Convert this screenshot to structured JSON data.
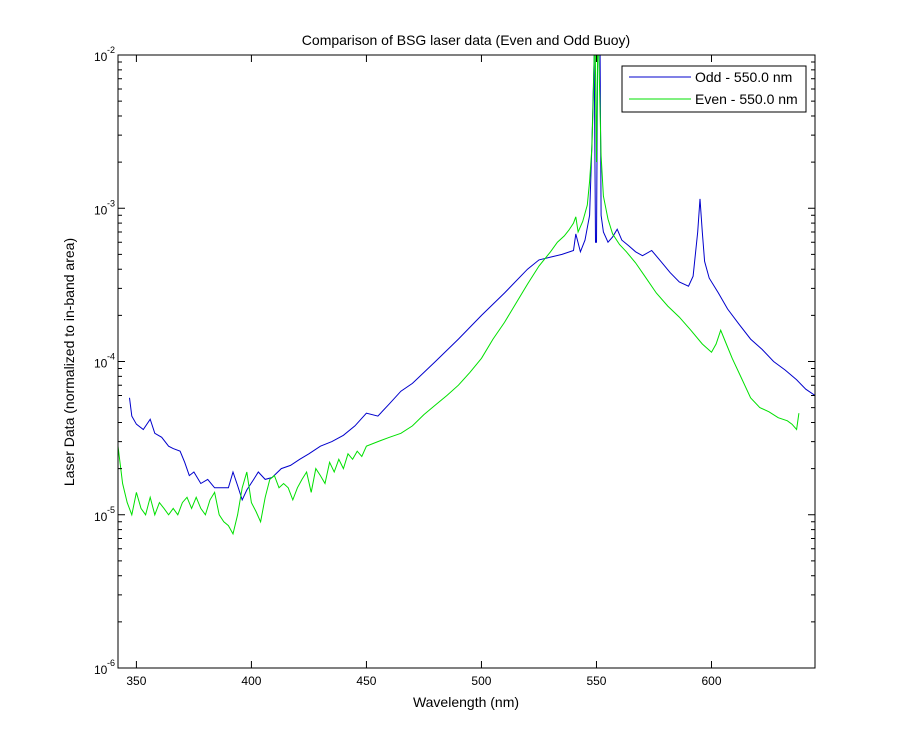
{
  "chart_data": {
    "type": "line",
    "title": "Comparison of BSG laser data (Even and Odd Buoy)",
    "xlabel": "Wavelength (nm)",
    "ylabel": "Laser Data (normalized to in-band area)",
    "xlim": [
      342,
      645
    ],
    "ylim": [
      1e-06,
      0.01
    ],
    "yscale": "log",
    "grid": false,
    "legend_position": "top-right",
    "x_ticks": [
      350,
      400,
      450,
      500,
      550,
      600
    ],
    "x_tick_labels": [
      "350",
      "400",
      "450",
      "500",
      "550",
      "600"
    ],
    "y_ticks": [
      {
        "value": 1e-06,
        "base": "10",
        "exp": "-6"
      },
      {
        "value": 1e-05,
        "base": "10",
        "exp": "-5"
      },
      {
        "value": 0.0001,
        "base": "10",
        "exp": "-4"
      },
      {
        "value": 0.001,
        "base": "10",
        "exp": "-3"
      },
      {
        "value": 0.01,
        "base": "10",
        "exp": "-2"
      }
    ],
    "series": [
      {
        "name": "Odd - 550.0 nm",
        "color": "#0000cc",
        "x": [
          347,
          348,
          350,
          353,
          356,
          358,
          361,
          364,
          366,
          369,
          371,
          373,
          375,
          378,
          381,
          384,
          387,
          390,
          392,
          394,
          396,
          398,
          401,
          403,
          406,
          409,
          413,
          417,
          421,
          425,
          430,
          435,
          440,
          445,
          450,
          455,
          460,
          465,
          470,
          480,
          490,
          500,
          510,
          520,
          525,
          530,
          535,
          540,
          541,
          543,
          545,
          547,
          548,
          549,
          549.6,
          550,
          550.5,
          551,
          551.6,
          552,
          553,
          555,
          557,
          559,
          561,
          564,
          567,
          570,
          574,
          578,
          582,
          586,
          590,
          592,
          594,
          595,
          596,
          597,
          599,
          603,
          607,
          612,
          617,
          622,
          627,
          632,
          637,
          641,
          645
        ],
        "y": [
          5.8e-05,
          4.4e-05,
          3.9e-05,
          3.6e-05,
          4.2e-05,
          3.4e-05,
          3.2e-05,
          2.8e-05,
          2.7e-05,
          2.6e-05,
          2.2e-05,
          1.8e-05,
          1.9e-05,
          1.6e-05,
          1.7e-05,
          1.5e-05,
          1.5e-05,
          1.5e-05,
          1.9e-05,
          1.55e-05,
          1.25e-05,
          1.45e-05,
          1.7e-05,
          1.9e-05,
          1.7e-05,
          1.75e-05,
          2e-05,
          2.1e-05,
          2.3e-05,
          2.5e-05,
          2.8e-05,
          3e-05,
          3.3e-05,
          3.8e-05,
          4.6e-05,
          4.4e-05,
          5.3e-05,
          6.4e-05,
          7.2e-05,
          0.0001,
          0.00014,
          0.0002,
          0.00028,
          0.0004,
          0.00046,
          0.00048,
          0.0005,
          0.00053,
          0.00068,
          0.00052,
          0.00062,
          0.0009,
          0.0026,
          0.01,
          0.0006,
          0.0006,
          0.01,
          0.01,
          0.01,
          0.0009,
          0.0007,
          0.0006,
          0.00065,
          0.00073,
          0.00062,
          0.00057,
          0.00052,
          0.00049,
          0.00053,
          0.00045,
          0.00038,
          0.00033,
          0.00031,
          0.00036,
          0.0007,
          0.00115,
          0.0007,
          0.00045,
          0.00035,
          0.00028,
          0.00022,
          0.000175,
          0.00014,
          0.00012,
          0.0001,
          8.8e-05,
          7.6e-05,
          6.6e-05,
          6e-05
        ]
      },
      {
        "name": "Even - 550.0 nm",
        "color": "#00e000",
        "x": [
          342,
          344,
          346,
          348,
          350,
          352,
          354,
          356,
          358,
          360,
          362,
          364,
          366,
          368,
          370,
          372,
          374,
          376,
          378,
          380,
          382,
          384,
          386,
          388,
          390,
          392,
          394,
          396,
          398,
          400,
          402,
          404,
          406,
          408,
          410,
          412,
          414,
          416,
          418,
          420,
          422,
          424,
          426,
          428,
          430,
          432,
          434,
          436,
          438,
          440,
          442,
          444,
          446,
          448,
          450,
          455,
          460,
          465,
          470,
          475,
          480,
          485,
          490,
          495,
          500,
          505,
          510,
          515,
          520,
          525,
          530,
          533,
          536,
          538,
          540,
          541,
          542,
          544,
          546,
          547,
          548,
          548.6,
          549,
          549.5,
          550,
          550.5,
          551,
          552,
          553,
          555,
          557,
          560,
          563,
          567,
          571,
          576,
          581,
          586,
          591,
          596,
          600,
          602,
          604,
          606,
          609,
          613,
          617,
          621,
          625,
          629,
          633,
          635,
          637,
          638
        ],
        "y": [
          2.8e-05,
          1.6e-05,
          1.2e-05,
          1e-05,
          1.4e-05,
          1.1e-05,
          1e-05,
          1.3e-05,
          1e-05,
          1.2e-05,
          1.1e-05,
          1e-05,
          1.1e-05,
          1e-05,
          1.2e-05,
          1.3e-05,
          1.1e-05,
          1.3e-05,
          1.1e-05,
          1e-05,
          1.25e-05,
          1.4e-05,
          1e-05,
          9e-06,
          8.5e-06,
          7.5e-06,
          1e-05,
          1.5e-05,
          1.9e-05,
          1.2e-05,
          1.05e-05,
          9e-06,
          1.3e-05,
          1.7e-05,
          1.8e-05,
          1.5e-05,
          1.6e-05,
          1.5e-05,
          1.25e-05,
          1.5e-05,
          1.7e-05,
          1.9e-05,
          1.4e-05,
          2e-05,
          1.8e-05,
          1.6e-05,
          2.2e-05,
          1.9e-05,
          2.3e-05,
          2e-05,
          2.5e-05,
          2.3e-05,
          2.6e-05,
          2.4e-05,
          2.8e-05,
          3e-05,
          3.2e-05,
          3.4e-05,
          3.8e-05,
          4.5e-05,
          5.2e-05,
          6e-05,
          7e-05,
          8.5e-05,
          0.000105,
          0.00014,
          0.00018,
          0.00024,
          0.00032,
          0.00042,
          0.00052,
          0.0006,
          0.00066,
          0.00072,
          0.0008,
          0.00088,
          0.0007,
          0.00082,
          0.00105,
          0.0015,
          0.0025,
          0.005,
          0.01,
          0.01,
          0.002,
          0.01,
          0.01,
          0.0022,
          0.0012,
          0.00085,
          0.00068,
          0.00058,
          0.00052,
          0.00044,
          0.00036,
          0.00028,
          0.00023,
          0.000195,
          0.00016,
          0.00013,
          0.000115,
          0.00013,
          0.00016,
          0.000135,
          0.000105,
          7.8e-05,
          5.8e-05,
          5e-05,
          4.7e-05,
          4.3e-05,
          4.1e-05,
          3.9e-05,
          3.6e-05,
          4.6e-05
        ]
      }
    ]
  }
}
